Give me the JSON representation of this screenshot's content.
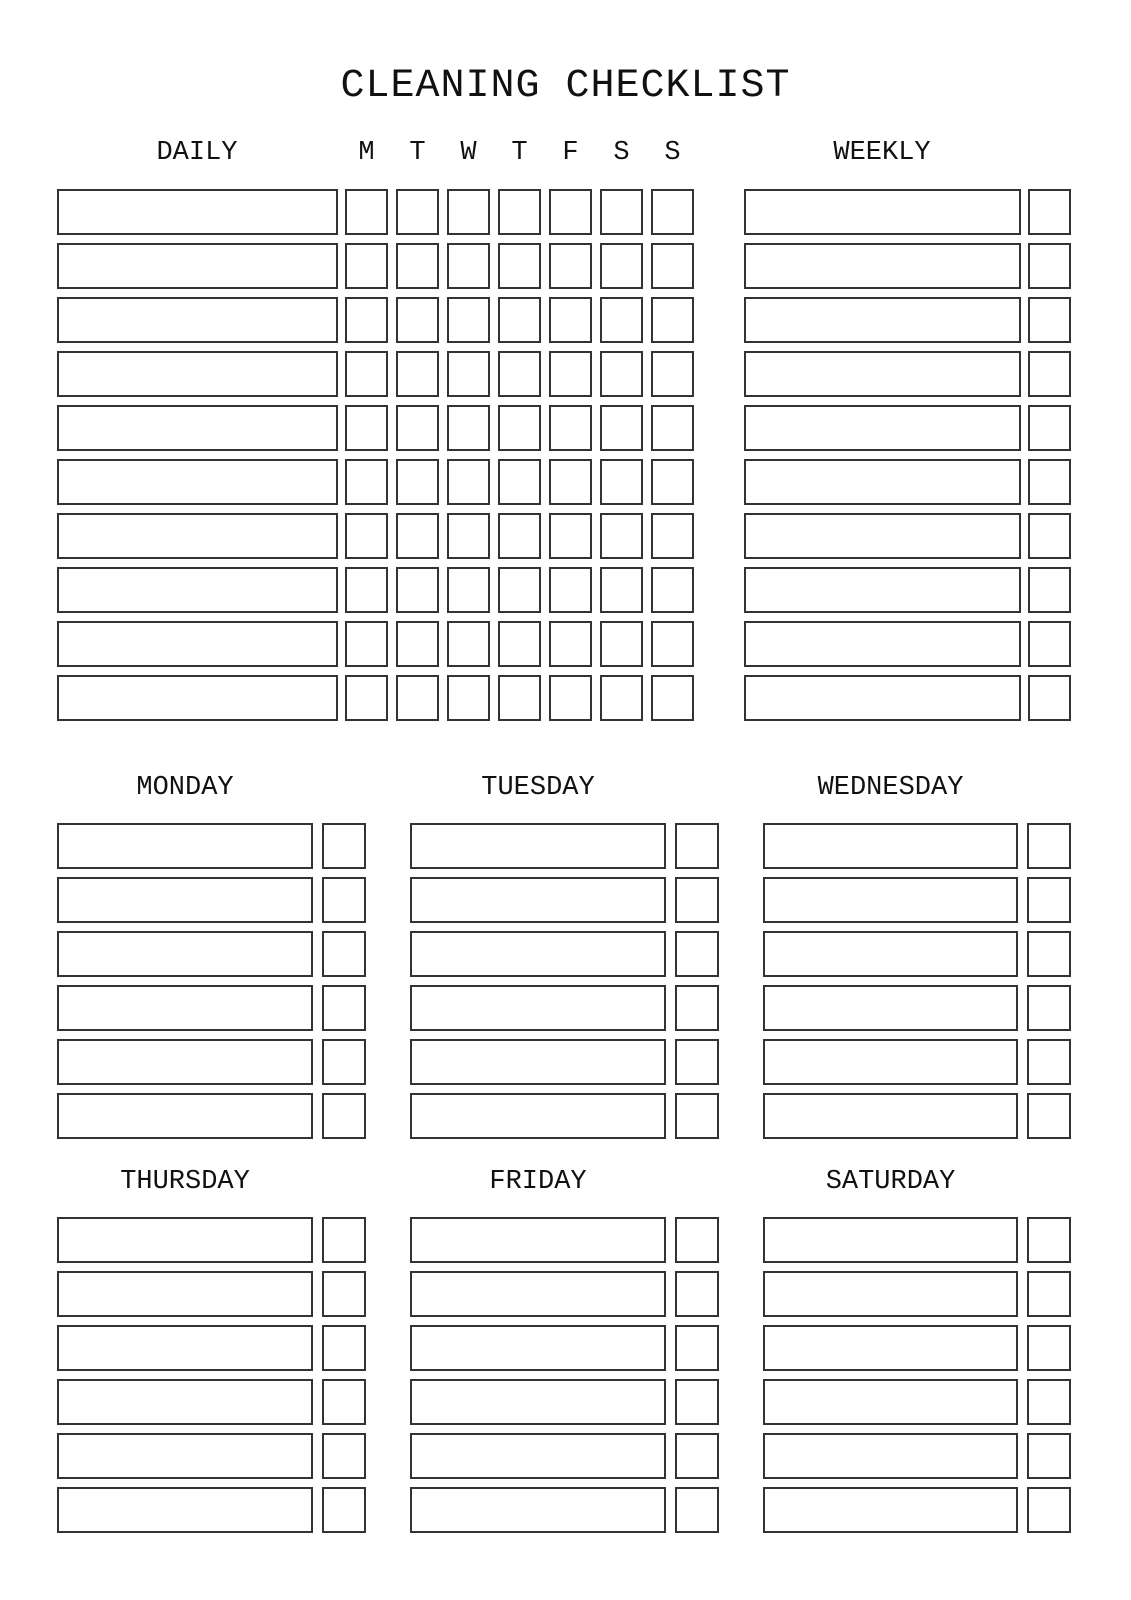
{
  "title": "CLEANING CHECKLIST",
  "daily": {
    "label": "DAILY",
    "days": [
      "M",
      "T",
      "W",
      "T",
      "F",
      "S",
      "S"
    ],
    "rows": 10
  },
  "weekly": {
    "label": "WEEKLY",
    "rows": 10
  },
  "day_sections": [
    {
      "label": "MONDAY",
      "rows": 6
    },
    {
      "label": "TUESDAY",
      "rows": 6
    },
    {
      "label": "WEDNESDAY",
      "rows": 6
    },
    {
      "label": "THURSDAY",
      "rows": 6
    },
    {
      "label": "FRIDAY",
      "rows": 6
    },
    {
      "label": "SATURDAY",
      "rows": 6
    }
  ]
}
